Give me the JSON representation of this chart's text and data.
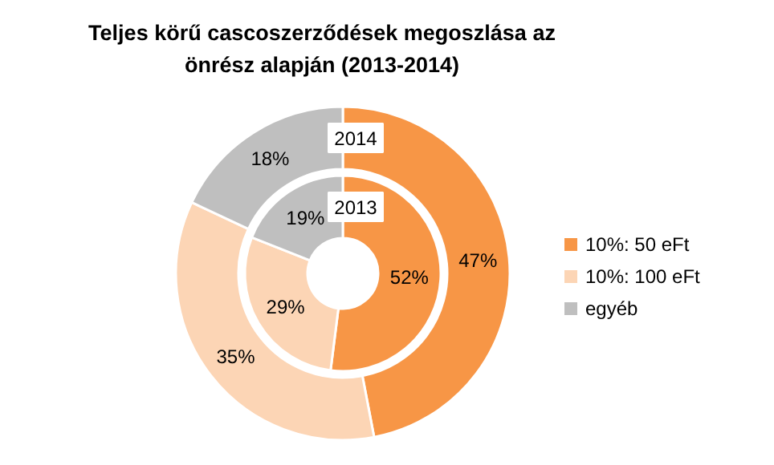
{
  "chart_data": {
    "type": "donut",
    "title": "Teljes körű cascoszerződések megoszlása az önrész alapján (2013-2014)",
    "categories": [
      "10%: 50 eFt",
      "10%: 100 eFt",
      "egyéb"
    ],
    "colors": [
      "#f79646",
      "#fcd5b5",
      "#bfbfbf"
    ],
    "series": [
      {
        "name": "2013",
        "values": [
          52,
          29,
          19
        ],
        "value_labels": [
          "52%",
          "29%",
          "19%"
        ]
      },
      {
        "name": "2014",
        "values": [
          47,
          35,
          18
        ],
        "value_labels": [
          "47%",
          "35%",
          "18%"
        ]
      }
    ],
    "legend": "right"
  }
}
